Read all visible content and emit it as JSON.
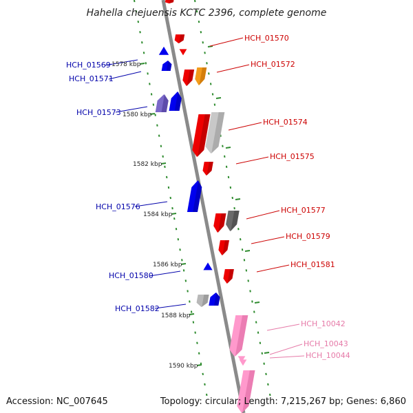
{
  "title": "Hahella chejuensis KCTC 2396, complete genome",
  "footer": {
    "accession": "Accession: NC_007645",
    "summary": "Topology: circular; Length: 7,215,267 bp; Genes: 6,860"
  },
  "colors": {
    "backbone": "#8a8a8a",
    "dots": "#2e8b2e",
    "label_right": "#cc0000",
    "label_left": "#0000aa",
    "label_pink": "#e67aa8"
  },
  "kbp_ticks": [
    "1578 kbp",
    "1580 kbp",
    "1582 kbp",
    "1584 kbp",
    "1586 kbp",
    "1588 kbp",
    "1590 kbp"
  ],
  "labels_left": [
    "HCH_01569",
    "HCH_01571",
    "HCH_01573",
    "HCH_01576",
    "HCH_01580",
    "HCH_01582"
  ],
  "labels_right": [
    "HCH_01570",
    "HCH_01572",
    "HCH_01574",
    "HCH_01575",
    "HCH_01577",
    "HCH_01579",
    "HCH_01581"
  ],
  "labels_pink": [
    "HCH_10042",
    "HCH_10043",
    "HCH_10044"
  ]
}
